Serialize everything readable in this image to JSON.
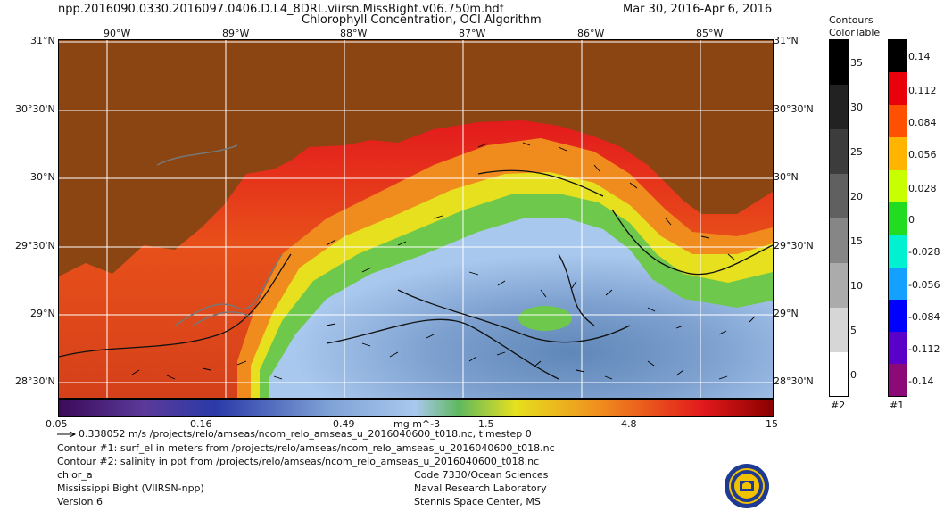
{
  "header": {
    "filename": "npp.2016090.0330.2016097.0406.D.L4_8DRL.viirsn.MissBight.v06.750m.hdf",
    "title": "Chlorophyll Concentration, OCI Algorithm",
    "date_range": "Mar 30, 2016-Apr  6, 2016"
  },
  "map": {
    "lon_labels": [
      "90°W",
      "89°W",
      "88°W",
      "87°W",
      "86°W",
      "85°W"
    ],
    "lat_labels": [
      "31°N",
      "30°30'N",
      "30°N",
      "29°30'N",
      "29°N",
      "28°30'N"
    ],
    "land_color": "#8b4513",
    "region": "Mississippi Bight"
  },
  "colorbar": {
    "ticks": [
      "0.05",
      "0.16",
      "0.49",
      "1.5",
      "4.8",
      "15"
    ],
    "units": "mg m^-3"
  },
  "contour_table": {
    "title_line1": "Contours",
    "title_line2": "ColorTable",
    "labels": [
      "35",
      "30",
      "25",
      "20",
      "15",
      "10",
      "5",
      "0"
    ],
    "footer": "#2"
  },
  "color_table": {
    "labels": [
      "0.14",
      "0.112",
      "0.084",
      "0.056",
      "0.028",
      "0",
      "-0.028",
      "-0.056",
      "-0.084",
      "-0.112",
      "-0.14"
    ],
    "footer": "#1"
  },
  "footer": {
    "vector_legend": "0.338052 m/s /projects/relo/amseas/ncom_relo_amseas_u_2016040600_t018.nc, timestep 0",
    "contour1": "Contour #1: surf_el in meters from /projects/relo/amseas/ncom_relo_amseas_u_2016040600_t018.nc",
    "contour2": "Contour #2: salinity in ppt from /projects/relo/amseas/ncom_relo_amseas_u_2016040600_t018.nc",
    "product": "chlor_a",
    "region_sensor": "Mississippi Bight (VIIRSN-npp)",
    "version": "Version 6",
    "org_code": "Code 7330/Ocean Sciences",
    "org_name": "Naval Research Laboratory",
    "org_location": "Stennis Space Center, MS"
  }
}
